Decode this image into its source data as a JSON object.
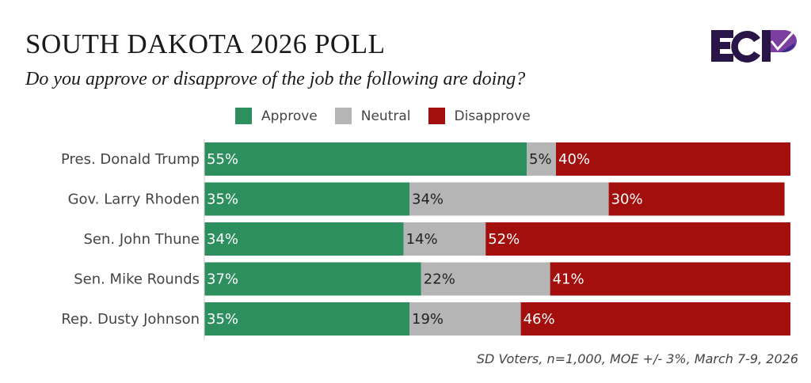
{
  "header": {
    "title": "SOUTH DAKOTA 2026 POLL",
    "subtitle": "Do you approve or disapprove of the job the following are doing?",
    "logo_text": "ECP"
  },
  "footnote": "SD Voters, n=1,000, MOE +/- 3%, March 7-9, 2026",
  "colors": {
    "approve": "#2e8f5e",
    "neutral": "#b5b5b5",
    "disapprove": "#a30f0c",
    "logo_dark": "#2a1548",
    "logo_purple": "#7b3fa0",
    "logo_blue": "#3a2b8a"
  },
  "chart_data": {
    "type": "bar",
    "orientation": "horizontal",
    "stacked": true,
    "title": "SOUTH DAKOTA 2026 POLL",
    "subtitle": "Do you approve or disapprove of the job the following are doing?",
    "xlabel": "",
    "ylabel": "",
    "xlim": [
      0,
      100
    ],
    "grid": false,
    "legend_position": "top",
    "categories": [
      "Pres. Donald Trump",
      "Gov. Larry Rhoden",
      "Sen. John Thune",
      "Sen. Mike Rounds",
      "Rep. Dusty Johnson"
    ],
    "series": [
      {
        "name": "Approve",
        "values": [
          55,
          35,
          34,
          37,
          35
        ],
        "labels": [
          "55%",
          "35%",
          "34%",
          "37%",
          "35%"
        ]
      },
      {
        "name": "Neutral",
        "values": [
          5,
          34,
          14,
          22,
          19
        ],
        "labels": [
          "5%",
          "34%",
          "14%",
          "22%",
          "19%"
        ]
      },
      {
        "name": "Disapprove",
        "values": [
          40,
          30,
          52,
          41,
          46
        ],
        "labels": [
          "40%",
          "30%",
          "52%",
          "41%",
          "46%"
        ]
      }
    ],
    "annotation": "SD Voters, n=1,000, MOE +/- 3%, March 7-9, 2026"
  }
}
